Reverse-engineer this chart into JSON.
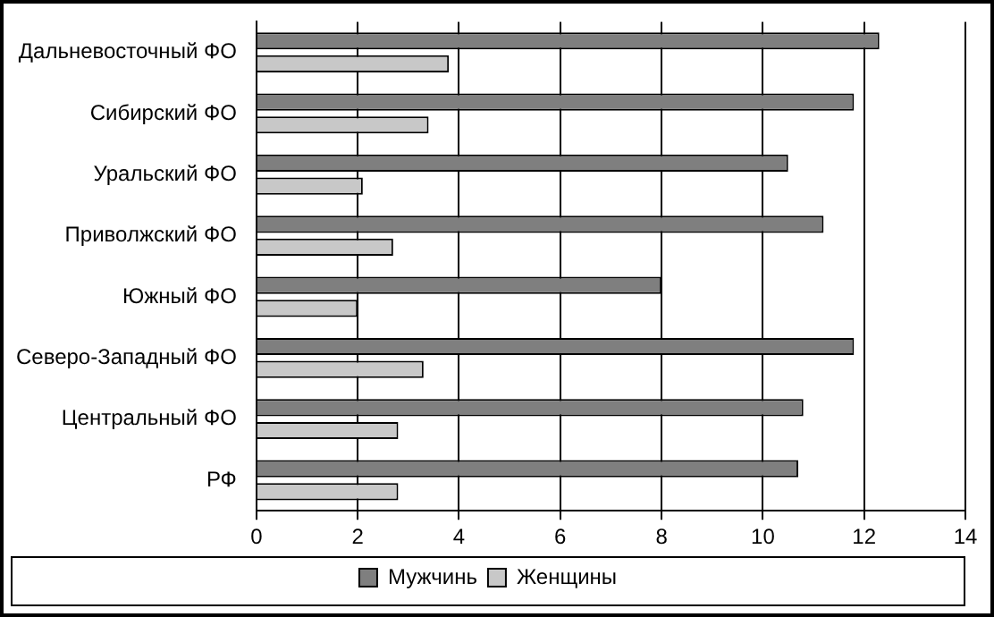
{
  "chart_data": {
    "type": "bar",
    "orientation": "horizontal",
    "categories": [
      "Дальневосточный ФО",
      "Сибирский ФО",
      "Уральский ФО",
      "Приволжский ФО",
      "Южный ФО",
      "Северо-Западный ФО",
      "Центральный ФО",
      "РФ"
    ],
    "series": [
      {
        "name": "Мужчинь",
        "color": "#7f7f7f",
        "values": [
          12.3,
          11.8,
          10.5,
          11.2,
          8.0,
          11.8,
          10.8,
          10.7
        ]
      },
      {
        "name": "Женщины",
        "color": "#c8c8c8",
        "values": [
          3.8,
          3.4,
          2.1,
          2.7,
          2.0,
          3.3,
          2.8,
          2.8
        ]
      }
    ],
    "xlim": [
      0,
      14
    ],
    "xticks": [
      0,
      2,
      4,
      6,
      8,
      10,
      12,
      14
    ],
    "grid": "x",
    "legend": "bottom"
  }
}
